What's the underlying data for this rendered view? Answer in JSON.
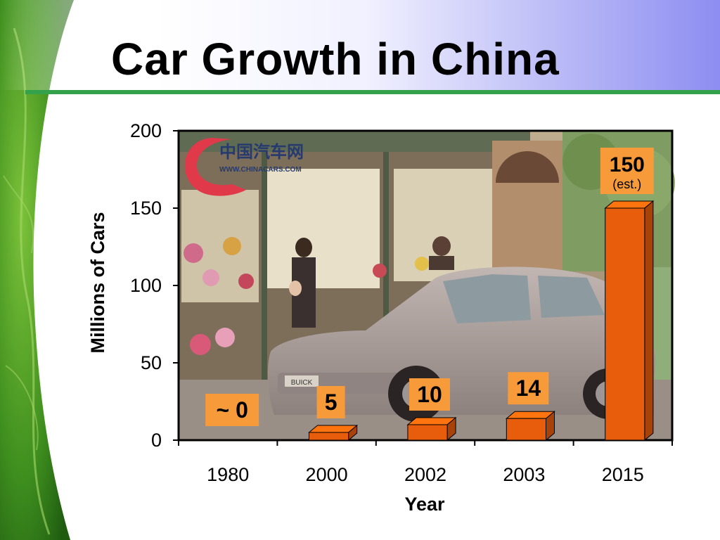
{
  "slide": {
    "title": "Car Growth in China",
    "colors": {
      "leaf_green": "#3f8f1f",
      "rule_green": "#33a24a",
      "band_purple": "#8d8df2"
    }
  },
  "photo": {
    "logo_text": "中国汽车网",
    "logo_url_text": "WWW.CHINACARS.COM",
    "plate_text": "BUICK"
  },
  "chart_data": {
    "type": "bar",
    "title": "",
    "xlabel": "Year",
    "ylabel": "Millions of Cars",
    "categories": [
      "1980",
      "2000",
      "2002",
      "2003",
      "2015"
    ],
    "values": [
      0,
      5,
      10,
      14,
      150
    ],
    "data_labels": [
      "~ 0",
      "5",
      "10",
      "14",
      "150"
    ],
    "annotations": [
      {
        "category": "2015",
        "text": "(est.)"
      }
    ],
    "ylim": [
      0,
      200
    ],
    "yticks": [
      0,
      50,
      100,
      150,
      200
    ],
    "grid": false,
    "legend": "none",
    "bar_color": "#e85d0c",
    "label_box_color": "#f79a3a"
  }
}
